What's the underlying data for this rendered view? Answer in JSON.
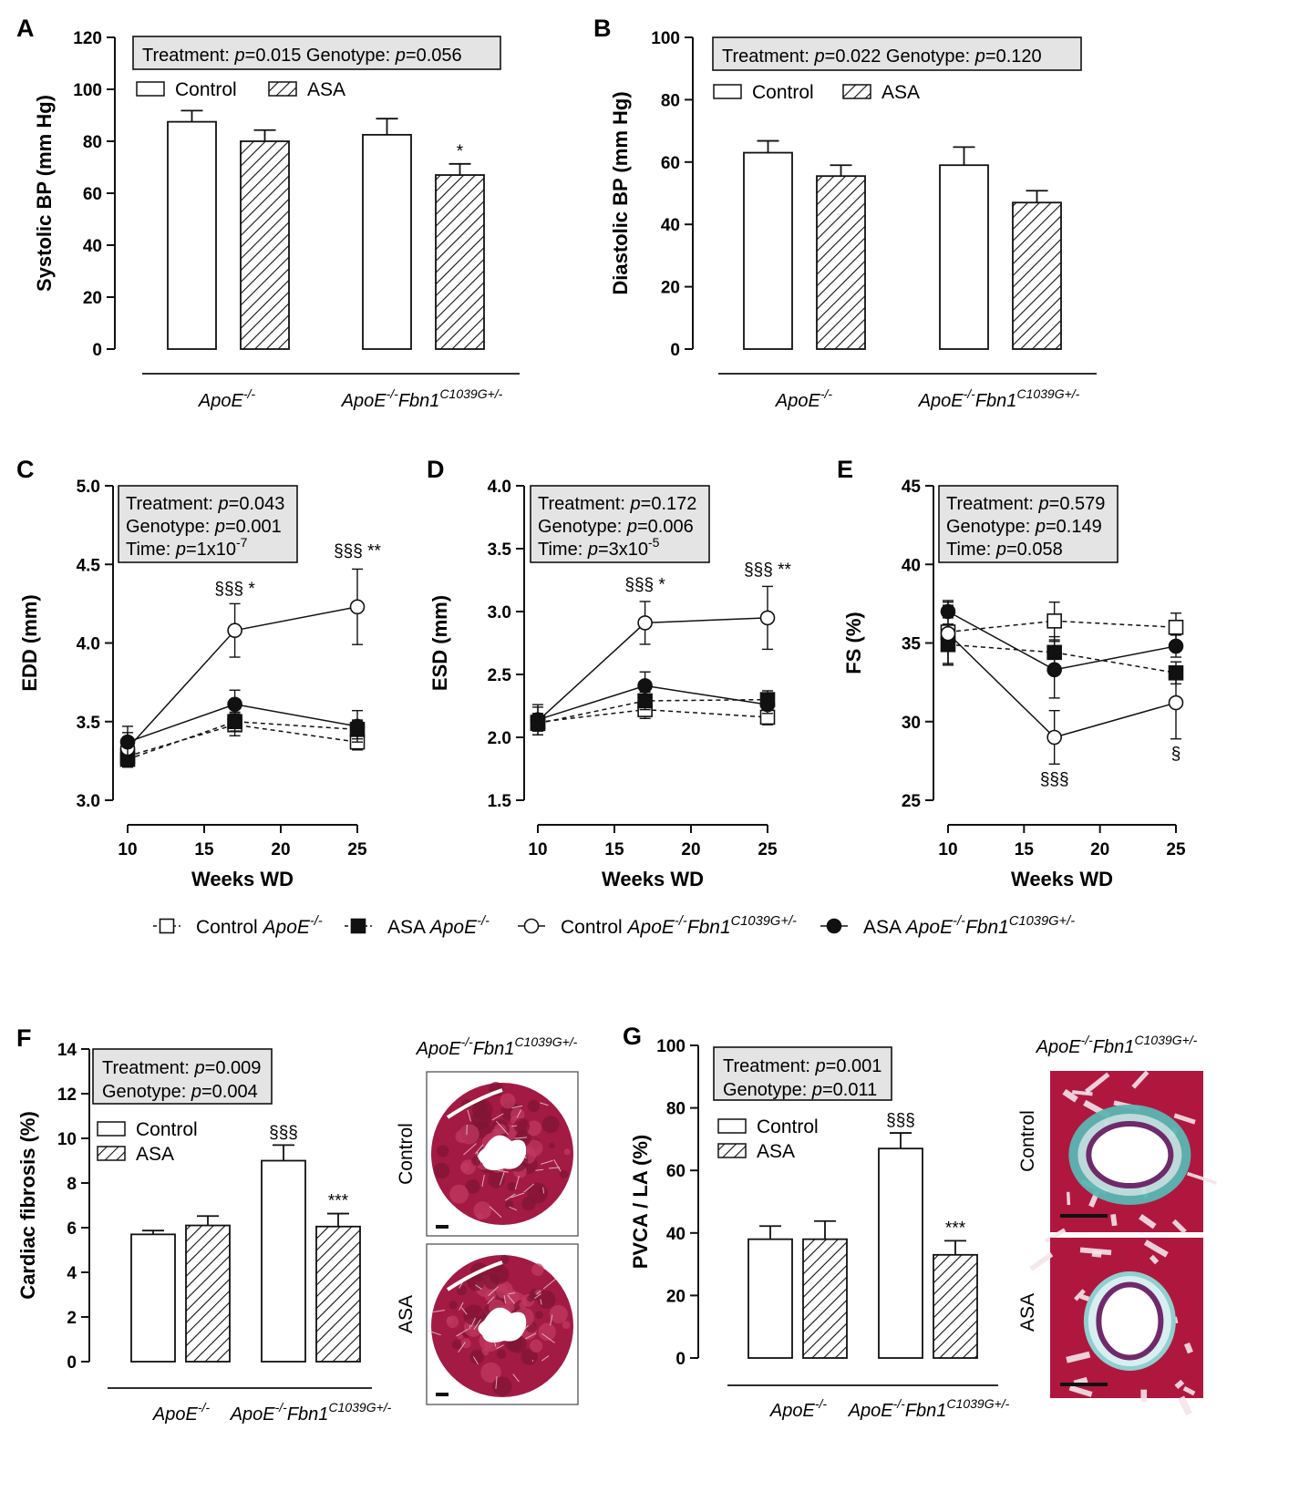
{
  "chart_data": [
    {
      "id": "A",
      "panel": "A",
      "type": "bar",
      "ylabel": "Systolic BP (mm Hg)",
      "ylim": [
        0,
        120
      ],
      "yticks": [
        0,
        20,
        40,
        60,
        80,
        100,
        120
      ],
      "stats": [
        "Treatment: p=0.015   Genotype: p=0.056"
      ],
      "legend": [
        "Control",
        "ASA"
      ],
      "groups": [
        "ApoE-/-",
        "ApoE-/-Fbn1C1039G+/-"
      ],
      "bars": [
        {
          "group": "ApoE-/-",
          "treatment": "Control",
          "value": 87.5,
          "error": 4.3,
          "mark": ""
        },
        {
          "group": "ApoE-/-",
          "treatment": "ASA",
          "value": 80,
          "error": 4.3,
          "mark": ""
        },
        {
          "group": "ApoE-/-Fbn1C1039G+/-",
          "treatment": "Control",
          "value": 82.5,
          "error": 6.2,
          "mark": ""
        },
        {
          "group": "ApoE-/-Fbn1C1039G+/-",
          "treatment": "ASA",
          "value": 67,
          "error": 4.3,
          "mark": "*"
        }
      ]
    },
    {
      "id": "B",
      "panel": "B",
      "type": "bar",
      "ylabel": "Diastolic BP (mm Hg)",
      "ylim": [
        0,
        100
      ],
      "yticks": [
        0,
        20,
        40,
        60,
        80,
        100
      ],
      "stats": [
        "Treatment: p=0.022   Genotype: p=0.120"
      ],
      "legend": [
        "Control",
        "ASA"
      ],
      "groups": [
        "ApoE-/-",
        "ApoE-/-Fbn1C1039G+/-"
      ],
      "bars": [
        {
          "group": "ApoE-/-",
          "treatment": "Control",
          "value": 63,
          "error": 3.8,
          "mark": ""
        },
        {
          "group": "ApoE-/-",
          "treatment": "ASA",
          "value": 55.5,
          "error": 3.5,
          "mark": ""
        },
        {
          "group": "ApoE-/-Fbn1C1039G+/-",
          "treatment": "Control",
          "value": 59,
          "error": 5.8,
          "mark": ""
        },
        {
          "group": "ApoE-/-Fbn1C1039G+/-",
          "treatment": "ASA",
          "value": 47,
          "error": 3.8,
          "mark": ""
        }
      ]
    },
    {
      "id": "C",
      "panel": "C",
      "type": "line",
      "ylabel": "EDD (mm)",
      "xlabel": "Weeks WD",
      "ylim": [
        3.0,
        5.0
      ],
      "yticks": [
        "3.0",
        "3.5",
        "4.0",
        "4.5",
        "5.0"
      ],
      "xlim": [
        10,
        25
      ],
      "xticks": [
        10,
        15,
        20,
        25
      ],
      "stats": [
        "Treatment: p=0.043",
        "Genotype: p=0.001",
        "Time: p=1x10-7"
      ],
      "annotations": [
        {
          "x": 17,
          "y": 4.31,
          "text": "§§§ *"
        },
        {
          "x": 25,
          "y": 4.55,
          "text": "§§§ **"
        }
      ],
      "series": [
        {
          "name": "Control ApoE-/-",
          "marker": "square-open",
          "dash": true,
          "x": [
            10,
            17,
            25
          ],
          "y": [
            3.28,
            3.48,
            3.37
          ],
          "err": [
            0.06,
            0.07,
            0.05
          ]
        },
        {
          "name": "ASA ApoE-/-",
          "marker": "square-filled",
          "dash": true,
          "x": [
            10,
            17,
            25
          ],
          "y": [
            3.26,
            3.5,
            3.45
          ],
          "err": [
            0.05,
            0.06,
            0.06
          ]
        },
        {
          "name": "Control ApoE-/-Fbn1C1039G+/-",
          "marker": "circle-open",
          "dash": false,
          "x": [
            10,
            17,
            25
          ],
          "y": [
            3.33,
            4.08,
            4.23
          ],
          "err": [
            0.1,
            0.17,
            0.24
          ]
        },
        {
          "name": "ASA ApoE-/-Fbn1C1039G+/-",
          "marker": "circle-filled",
          "dash": false,
          "x": [
            10,
            17,
            25
          ],
          "y": [
            3.37,
            3.61,
            3.47
          ],
          "err": [
            0.1,
            0.09,
            0.1
          ]
        }
      ]
    },
    {
      "id": "D",
      "panel": "D",
      "type": "line",
      "ylabel": "ESD (mm)",
      "xlabel": "Weeks WD",
      "ylim": [
        1.5,
        4.0
      ],
      "yticks": [
        "1.5",
        "2.0",
        "2.5",
        "3.0",
        "3.5",
        "4.0"
      ],
      "xlim": [
        10,
        25
      ],
      "xticks": [
        10,
        15,
        20,
        25
      ],
      "stats": [
        "Treatment: p=0.172",
        "Genotype: p=0.006",
        "Time: p=3x10-5"
      ],
      "annotations": [
        {
          "x": 17,
          "y": 3.17,
          "text": "§§§ *"
        },
        {
          "x": 25,
          "y": 3.29,
          "text": "§§§ **"
        }
      ],
      "series": [
        {
          "name": "Control ApoE-/-",
          "marker": "square-open",
          "dash": true,
          "x": [
            10,
            17,
            25
          ],
          "y": [
            2.12,
            2.22,
            2.16
          ],
          "err": [
            0.07,
            0.07,
            0.06
          ]
        },
        {
          "name": "ASA ApoE-/-",
          "marker": "square-filled",
          "dash": true,
          "x": [
            10,
            17,
            25
          ],
          "y": [
            2.11,
            2.29,
            2.3
          ],
          "err": [
            0.06,
            0.07,
            0.07
          ]
        },
        {
          "name": "Control ApoE-/-Fbn1C1039G+/-",
          "marker": "circle-open",
          "dash": false,
          "x": [
            10,
            17,
            25
          ],
          "y": [
            2.13,
            2.91,
            2.95
          ],
          "err": [
            0.11,
            0.17,
            0.25
          ]
        },
        {
          "name": "ASA ApoE-/-Fbn1C1039G+/-",
          "marker": "circle-filled",
          "dash": false,
          "x": [
            10,
            17,
            25
          ],
          "y": [
            2.14,
            2.41,
            2.26
          ],
          "err": [
            0.12,
            0.11,
            0.07
          ]
        }
      ]
    },
    {
      "id": "E",
      "panel": "E",
      "type": "line",
      "ylabel": "FS (%)",
      "xlabel": "Weeks WD",
      "ylim": [
        25,
        45
      ],
      "yticks": [
        "25",
        "30",
        "35",
        "40",
        "45"
      ],
      "xlim": [
        10,
        25
      ],
      "xticks": [
        10,
        15,
        20,
        25
      ],
      "stats": [
        "Treatment: p=0.579",
        "Genotype: p=0.149",
        "Time: p=0.058"
      ],
      "annotations": [
        {
          "x": 17,
          "y": 26.0,
          "text": "§§§"
        },
        {
          "x": 25,
          "y": 27.6,
          "text": "§"
        }
      ],
      "series": [
        {
          "name": "Control ApoE-/-",
          "marker": "square-open",
          "dash": true,
          "x": [
            10,
            17,
            25
          ],
          "y": [
            35.7,
            36.4,
            36.0
          ],
          "err": [
            2.0,
            1.2,
            0.9
          ]
        },
        {
          "name": "ASA ApoE-/-",
          "marker": "square-filled",
          "dash": true,
          "x": [
            10,
            17,
            25
          ],
          "y": [
            34.9,
            34.4,
            33.1
          ],
          "err": [
            1.3,
            1.0,
            0.7
          ]
        },
        {
          "name": "Control ApoE-/-Fbn1C1039G+/-",
          "marker": "circle-open",
          "dash": false,
          "x": [
            10,
            17,
            25
          ],
          "y": [
            35.6,
            29.0,
            31.2
          ],
          "err": [
            2.0,
            1.7,
            2.3
          ]
        },
        {
          "name": "ASA ApoE-/-Fbn1C1039G+/-",
          "marker": "circle-filled",
          "dash": false,
          "x": [
            10,
            17,
            25
          ],
          "y": [
            37.0,
            33.3,
            34.8
          ],
          "err": [
            0.4,
            1.8,
            0.7
          ]
        }
      ]
    },
    {
      "id": "F",
      "panel": "F",
      "type": "bar",
      "ylabel": "Cardiac fibrosis (%)",
      "ylim": [
        0,
        14
      ],
      "yticks": [
        0,
        2,
        4,
        6,
        8,
        10,
        12,
        14
      ],
      "stats": [
        "Treatment: p=0.009",
        "Genotype: p=0.004"
      ],
      "legend": [
        "Control",
        "ASA"
      ],
      "groups": [
        "ApoE-/-",
        "ApoE-/-Fbn1C1039G+/-"
      ],
      "bars": [
        {
          "group": "ApoE-/-",
          "treatment": "Control",
          "value": 5.7,
          "error": 0.17,
          "mark": ""
        },
        {
          "group": "ApoE-/-",
          "treatment": "ASA",
          "value": 6.1,
          "error": 0.42,
          "mark": ""
        },
        {
          "group": "ApoE-/-Fbn1C1039G+/-",
          "treatment": "Control",
          "value": 9.0,
          "error": 0.7,
          "mark": "§§§"
        },
        {
          "group": "ApoE-/-Fbn1C1039G+/-",
          "treatment": "ASA",
          "value": 6.05,
          "error": 0.58,
          "mark": "***"
        }
      ]
    },
    {
      "id": "G",
      "panel": "G",
      "type": "bar",
      "ylabel": "PVCA / LA (%)",
      "ylim": [
        0,
        100
      ],
      "yticks": [
        0,
        20,
        40,
        60,
        80,
        100
      ],
      "stats": [
        "Treatment: p=0.001",
        "Genotype: p=0.011"
      ],
      "legend": [
        "Control",
        "ASA"
      ],
      "groups": [
        "ApoE-/-",
        "ApoE-/-Fbn1C1039G+/-"
      ],
      "bars": [
        {
          "group": "ApoE-/-",
          "treatment": "Control",
          "value": 38,
          "error": 4.2,
          "mark": ""
        },
        {
          "group": "ApoE-/-",
          "treatment": "ASA",
          "value": 38,
          "error": 5.8,
          "mark": ""
        },
        {
          "group": "ApoE-/-Fbn1C1039G+/-",
          "treatment": "Control",
          "value": 67,
          "error": 5.0,
          "mark": "§§§"
        },
        {
          "group": "ApoE-/-Fbn1C1039G+/-",
          "treatment": "ASA",
          "value": 33,
          "error": 4.5,
          "mark": "***"
        }
      ]
    }
  ],
  "line_legend": [
    "Control ApoE-/-",
    "ASA ApoE-/-",
    "Control ApoE-/-Fbn1C1039G+/-",
    "ASA ApoE-/-Fbn1C1039G+/-"
  ],
  "histology": [
    {
      "panel": "F",
      "title": "ApoE-/-Fbn1C1039G+/-",
      "rows": [
        "Control",
        "ASA"
      ]
    },
    {
      "panel": "G",
      "title": "ApoE-/-Fbn1C1039G+/-",
      "rows": [
        "Control",
        "ASA"
      ]
    }
  ],
  "colors": {
    "ink": "#111111",
    "stat_box": "#e4e4e4",
    "tissue_red": "#b0173e",
    "collagen": "#5ab7b3"
  }
}
